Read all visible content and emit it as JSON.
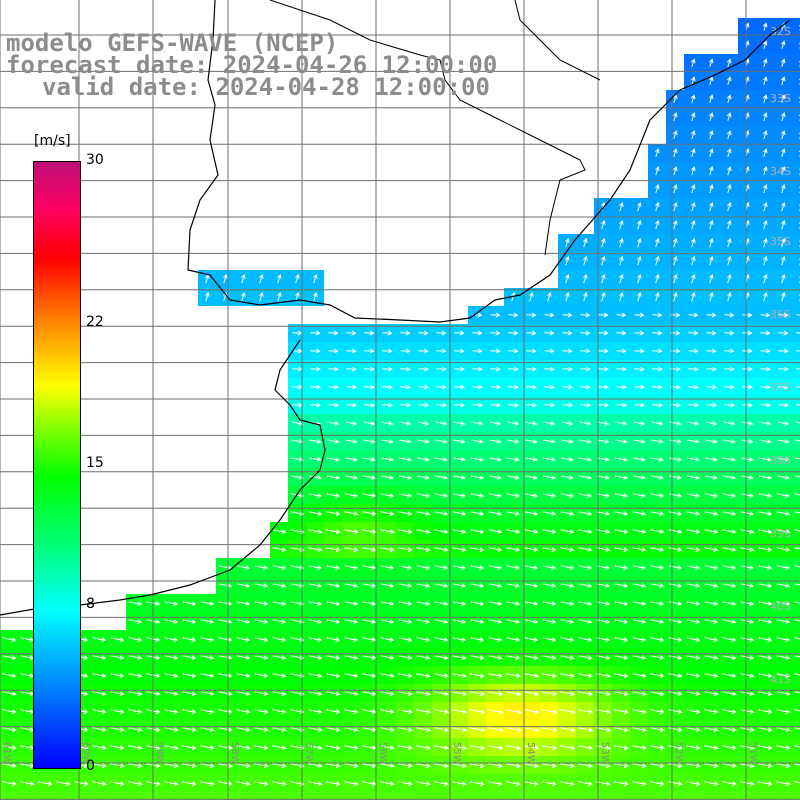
{
  "title": {
    "model": "modelo GEFS-WAVE (NCEP)",
    "forecast": "forecast date: 2024-04-26 12:00:00",
    "valid": "valid date: 2024-04-28 12:00:00"
  },
  "colorbar": {
    "unit": "[m/s]",
    "ticks": [
      "0",
      "8",
      "15",
      "22",
      "30"
    ],
    "min": 0,
    "max": 30
  },
  "lat_labels": [
    "32S",
    "33S",
    "34S",
    "35S",
    "36S",
    "37S",
    "38S",
    "39S",
    "40S",
    "41S"
  ],
  "lon_labels": [
    "61W",
    "60W",
    "59W",
    "58W",
    "57W",
    "56W",
    "55W",
    "54W",
    "53W",
    "52W",
    "51W"
  ],
  "colors": {
    "land": "#ffffff",
    "grid": "#6e6e6e",
    "coast": "#000000",
    "title": "#8c8c8c",
    "arrows": "#ffffff"
  }
}
